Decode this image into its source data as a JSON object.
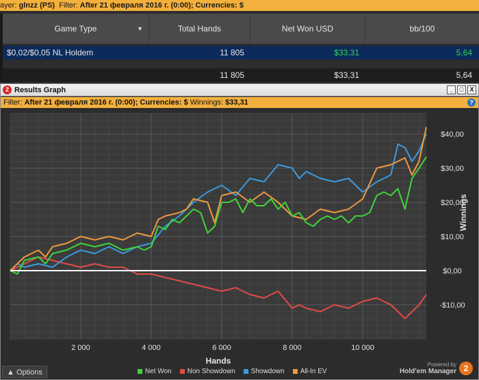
{
  "topbar": {
    "player_prefix": "ayer:",
    "player_value": "glnzz (PS)",
    "filter_prefix": "Filter:",
    "filter_value": "After 21 февраля 2016 г. (0:00); Currencies: $"
  },
  "stats_table": {
    "columns": [
      "Game Type",
      "Total Hands",
      "Net Won USD",
      "bb/100"
    ],
    "rows": [
      {
        "game_type": "$0,02/$0,05 NL Holdem",
        "total_hands": "11 805",
        "net_won": "$33,31",
        "bb100": "5,64"
      }
    ],
    "totals": {
      "total_hands": "11 805",
      "net_won": "$33,31",
      "bb100": "5,64"
    }
  },
  "window": {
    "title": "Results Graph",
    "logo": "2",
    "btn_min": "_",
    "btn_max": "□",
    "btn_close": "X",
    "filter_label": "Filter:",
    "filter_value": "After 21 февраля 2016 г. (0:00); Currencies: $",
    "winnings_label": "Winnings:",
    "winnings_value": "$33,31",
    "help": "?"
  },
  "colors": {
    "net_won": "#3ed53a",
    "non_showdown": "#e34b46",
    "showdown": "#3a9be2",
    "all_in_ev": "#f09a3e",
    "zero_line": "#ffffff"
  },
  "chart_data": {
    "type": "line",
    "xlabel": "Hands",
    "ylabel": "Winnings",
    "xlim": [
      0,
      11805
    ],
    "ylim": [
      -20,
      46
    ],
    "x_ticks": [
      2000,
      4000,
      6000,
      8000,
      10000
    ],
    "x_tick_labels": [
      "2 000",
      "4 000",
      "6 000",
      "8 000",
      "10 000"
    ],
    "y_ticks": [
      40,
      30,
      20,
      10,
      0,
      -10
    ],
    "y_tick_labels": [
      "$40,00",
      "$30,00",
      "$20,00",
      "$10,00",
      "$0,00",
      "-$10,00"
    ],
    "grid": true,
    "legend_position": "bottom",
    "series": [
      {
        "name": "Net Won",
        "key": "net_won",
        "x": [
          0,
          200,
          400,
          800,
          1000,
          1200,
          1600,
          2000,
          2400,
          2800,
          3200,
          3600,
          3800,
          4000,
          4200,
          4400,
          4600,
          4800,
          5000,
          5200,
          5400,
          5600,
          5800,
          6000,
          6200,
          6400,
          6600,
          6800,
          7000,
          7200,
          7400,
          7600,
          7800,
          8000,
          8200,
          8400,
          8600,
          8800,
          9000,
          9200,
          9400,
          9600,
          9800,
          10000,
          10200,
          10400,
          10600,
          10800,
          11000,
          11200,
          11400,
          11600,
          11805
        ],
        "y": [
          0,
          -1,
          3,
          4,
          2,
          5,
          6,
          8,
          7,
          8,
          6,
          7,
          6,
          7,
          13,
          12,
          15,
          14,
          16,
          18,
          17,
          11,
          13,
          20,
          20,
          21,
          17,
          21,
          19,
          19,
          21,
          18,
          20,
          16,
          17,
          14,
          13,
          15,
          16,
          15,
          16,
          14,
          16,
          16,
          17,
          22,
          23,
          22,
          24,
          18,
          27,
          30,
          33.3
        ]
      },
      {
        "name": "Non Showdown",
        "key": "non_showdown",
        "x": [
          0,
          200,
          400,
          800,
          1200,
          1600,
          2000,
          2400,
          2800,
          3200,
          3600,
          4000,
          4400,
          4800,
          5200,
          5600,
          6000,
          6400,
          6800,
          7200,
          7600,
          8000,
          8200,
          8400,
          8800,
          9200,
          9600,
          10000,
          10400,
          10800,
          11000,
          11200,
          11400,
          11600,
          11805
        ],
        "y": [
          0,
          1,
          2,
          4,
          3,
          2,
          1,
          2,
          1,
          1,
          -1,
          -1,
          -2,
          -3,
          -4,
          -5,
          -6,
          -5,
          -7,
          -8,
          -6,
          -11,
          -10,
          -11,
          -12,
          -10,
          -11,
          -9,
          -8,
          -10,
          -12,
          -14,
          -12,
          -10,
          -7
        ]
      },
      {
        "name": "Showdown",
        "key": "showdown",
        "x": [
          0,
          200,
          400,
          800,
          1200,
          1600,
          2000,
          2400,
          2800,
          3200,
          3600,
          4000,
          4400,
          4800,
          5200,
          5600,
          6000,
          6400,
          6800,
          7200,
          7600,
          8000,
          8200,
          8400,
          8800,
          9200,
          9600,
          10000,
          10400,
          10800,
          11000,
          11200,
          11400,
          11600,
          11805
        ],
        "y": [
          0,
          2,
          1,
          2,
          1,
          4,
          6,
          5,
          7,
          5,
          7,
          8,
          13,
          16,
          20,
          23,
          25,
          22,
          27,
          26,
          31,
          30,
          27,
          29,
          27,
          26,
          27,
          23,
          26,
          28,
          37,
          36,
          32,
          35,
          40
        ]
      },
      {
        "name": "All-In EV",
        "key": "all_in_ev",
        "x": [
          0,
          200,
          400,
          800,
          1000,
          1200,
          1600,
          2000,
          2400,
          2800,
          3200,
          3600,
          4000,
          4200,
          4400,
          4800,
          5000,
          5200,
          5600,
          5800,
          6000,
          6400,
          6800,
          7200,
          7600,
          8000,
          8400,
          8800,
          9200,
          9600,
          10000,
          10400,
          10800,
          11200,
          11400,
          11600,
          11805
        ],
        "y": [
          0,
          2,
          4,
          6,
          4,
          7,
          8,
          10,
          9,
          10,
          9,
          11,
          10,
          15,
          16,
          17,
          18,
          21,
          20,
          14,
          22,
          23,
          20,
          23,
          20,
          16,
          15,
          18,
          17,
          18,
          21,
          30,
          31,
          33,
          28,
          32,
          42
        ]
      }
    ]
  },
  "legend": {
    "items": [
      {
        "key": "net_won",
        "label": "Net Won"
      },
      {
        "key": "non_showdown",
        "label": "Non Showdown"
      },
      {
        "key": "showdown",
        "label": "Showdown"
      },
      {
        "key": "all_in_ev",
        "label": "All-In EV"
      }
    ]
  },
  "footer": {
    "options_label": "Options",
    "options_icon": "chevron-up-icon",
    "powered_by": "Powered by",
    "product": "Hold'em Manager",
    "badge": "2"
  }
}
